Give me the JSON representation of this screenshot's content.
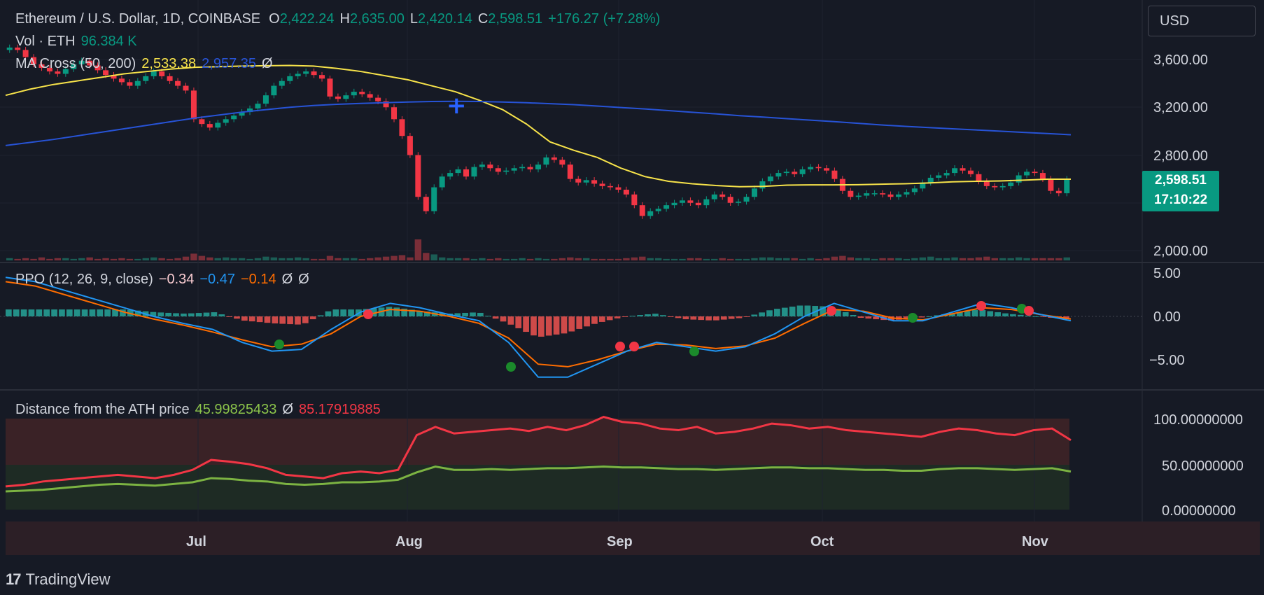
{
  "header": {
    "symbol": "Ethereum / U.S. Dollar, 1D, COINBASE",
    "o_label": "O",
    "o_value": "2,422.24",
    "h_label": "H",
    "h_value": "2,635.00",
    "l_label": "L",
    "l_value": "2,420.14",
    "c_label": "C",
    "c_value": "2,598.51",
    "change": "+176.27 (+7.28%)"
  },
  "vol_legend": {
    "label": "Vol · ETH",
    "value": "96.384 K"
  },
  "ma_legend": {
    "label": "MA Cross (50, 200)",
    "ma50": "2,533.38",
    "ma200": "2,957.35",
    "icon": "Ø"
  },
  "ppo_legend": {
    "label": "PPO (12, 26, 9, close)",
    "hist": "−0.34",
    "ppo": "−0.47",
    "signal": "−0.14",
    "icon1": "Ø",
    "icon2": "Ø"
  },
  "ath_legend": {
    "label": "Distance from the ATH price",
    "v1": "45.99825433",
    "icon": "Ø",
    "v2": "85.17919885"
  },
  "currency_button": "USD",
  "price_badge": {
    "price": "2,598.51",
    "countdown": "17:10:22"
  },
  "branding": {
    "text": "TradingView",
    "mark": "17"
  },
  "colors": {
    "up": "#089981",
    "down": "#f23645",
    "ma50": "#f7e34a",
    "ma200": "#2753d6",
    "ppo": "#2196f3",
    "signal": "#ff6d00",
    "ath_red": "#f23645",
    "ath_green": "#7cb342"
  },
  "chart_data": [
    {
      "type": "candlestick",
      "title": "Ethereum / U.S. Dollar, 1D, COINBASE",
      "x_ticks": [
        "Jul",
        "Aug",
        "Sep",
        "Oct",
        "Nov"
      ],
      "y_ticks": [
        "3,600.00",
        "3,200.00",
        "2,800.00",
        "2,000.00"
      ],
      "ylim": [
        1950,
        3800
      ],
      "closes": [
        3700,
        3680,
        3620,
        3560,
        3530,
        3500,
        3480,
        3520,
        3560,
        3590,
        3550,
        3510,
        3470,
        3440,
        3410,
        3380,
        3420,
        3460,
        3500,
        3460,
        3420,
        3380,
        3340,
        3100,
        3060,
        3030,
        3070,
        3100,
        3130,
        3160,
        3190,
        3230,
        3300,
        3380,
        3420,
        3460,
        3480,
        3500,
        3470,
        3440,
        3290,
        3270,
        3300,
        3330,
        3310,
        3280,
        3250,
        3200,
        3100,
        2960,
        2800,
        2450,
        2330,
        2530,
        2620,
        2650,
        2680,
        2620,
        2700,
        2720,
        2690,
        2660,
        2670,
        2690,
        2700,
        2680,
        2720,
        2780,
        2760,
        2720,
        2600,
        2570,
        2590,
        2560,
        2540,
        2530,
        2510,
        2470,
        2380,
        2290,
        2330,
        2350,
        2380,
        2400,
        2420,
        2400,
        2380,
        2430,
        2470,
        2450,
        2400,
        2410,
        2450,
        2520,
        2580,
        2620,
        2650,
        2660,
        2640,
        2680,
        2700,
        2690,
        2670,
        2600,
        2500,
        2450,
        2460,
        2480,
        2480,
        2470,
        2450,
        2470,
        2490,
        2520,
        2570,
        2610,
        2630,
        2650,
        2690,
        2670,
        2640,
        2580,
        2540,
        2530,
        2540,
        2570,
        2630,
        2660,
        2650,
        2600,
        2500,
        2480,
        2600
      ],
      "ma50": [
        3300,
        3350,
        3390,
        3420,
        3450,
        3480,
        3500,
        3520,
        3535,
        3540,
        3545,
        3548,
        3550,
        3545,
        3525,
        3500,
        3465,
        3430,
        3380,
        3330,
        3260,
        3180,
        3060,
        2910,
        2840,
        2780,
        2690,
        2620,
        2580,
        2560,
        2545,
        2535,
        2538,
        2548,
        2550,
        2550,
        2552,
        2556,
        2560,
        2566,
        2576,
        2580,
        2583,
        2590,
        2598,
        2598
      ],
      "ma200": [
        2880,
        2905,
        2930,
        2960,
        2990,
        3020,
        3050,
        3080,
        3110,
        3135,
        3160,
        3180,
        3200,
        3215,
        3225,
        3232,
        3238,
        3244,
        3248,
        3250,
        3248,
        3244,
        3238,
        3230,
        3222,
        3210,
        3198,
        3186,
        3172,
        3158,
        3145,
        3130,
        3118,
        3105,
        3092,
        3080,
        3066,
        3052,
        3040,
        3030,
        3020,
        3010,
        3000,
        2990,
        2980,
        2970
      ],
      "volume": [
        3,
        2,
        3,
        2,
        4,
        2,
        3,
        3,
        2,
        3,
        4,
        2,
        3,
        2,
        3,
        2,
        2,
        3,
        4,
        3,
        2,
        3,
        5,
        9,
        6,
        4,
        3,
        4,
        3,
        3,
        2,
        3,
        5,
        4,
        3,
        3,
        4,
        3,
        2,
        2,
        6,
        3,
        3,
        3,
        2,
        3,
        4,
        5,
        6,
        7,
        4,
        28,
        10,
        8,
        4,
        3,
        3,
        3,
        2,
        3,
        2,
        3,
        2,
        2,
        3,
        2,
        3,
        2,
        2,
        3,
        4,
        3,
        3,
        2,
        2,
        2,
        2,
        3,
        4,
        5,
        3,
        3,
        2,
        2,
        2,
        3,
        3,
        2,
        2,
        3,
        2,
        2,
        2,
        3,
        4,
        4,
        3,
        3,
        3,
        2,
        3,
        2,
        3,
        5,
        6,
        4,
        3,
        3,
        2,
        3,
        3,
        3,
        2,
        3,
        4,
        5,
        3,
        3,
        4,
        3,
        3,
        4,
        5,
        3,
        3,
        3,
        4,
        3,
        3,
        3,
        3,
        3,
        4
      ]
    },
    {
      "type": "line",
      "title": "PPO (12, 26, 9, close)",
      "y_ticks": [
        "5.00",
        "0.00",
        "−5.00"
      ],
      "ylim": [
        -8,
        5
      ],
      "series": [
        {
          "name": "PPO",
          "values": [
            4.5,
            4,
            3,
            2,
            1,
            0,
            -0.8,
            -1.5,
            -3,
            -4,
            -3.8,
            -1.5,
            0.5,
            1.5,
            1,
            0.2,
            -0.5,
            -3,
            -7,
            -7,
            -5.5,
            -4,
            -3,
            -3.5,
            -4,
            -3.5,
            -2,
            0,
            1.5,
            0.5,
            -0.5,
            -0.5,
            0.5,
            1.5,
            1,
            0.2,
            -0.5
          ]
        },
        {
          "name": "Signal",
          "values": [
            4,
            3.5,
            2.5,
            1.5,
            0.5,
            -0.3,
            -1,
            -1.8,
            -2.7,
            -3.5,
            -3.2,
            -2,
            0,
            0.8,
            0.6,
            0,
            -0.8,
            -2.5,
            -5.5,
            -5.8,
            -5,
            -4,
            -3.2,
            -3.3,
            -3.7,
            -3.4,
            -2.5,
            -0.8,
            0.8,
            0.6,
            -0.2,
            -0.4,
            0.3,
            1,
            0.8,
            0.2,
            -0.3
          ]
        }
      ]
    },
    {
      "type": "line",
      "title": "Distance from the ATH price",
      "y_ticks": [
        "100.00000000",
        "50.00000000",
        "0.00000000"
      ],
      "ylim": [
        0,
        120
      ],
      "series": [
        {
          "name": "Distance from the ATH price",
          "values": [
            28,
            30,
            34,
            36,
            38,
            40,
            42,
            40,
            38,
            42,
            48,
            60,
            58,
            55,
            50,
            42,
            40,
            38,
            44,
            46,
            44,
            48,
            90,
            100,
            92,
            94,
            96,
            98,
            95,
            100,
            96,
            102,
            112,
            106,
            104,
            98,
            96,
            100,
            92,
            94,
            98,
            104,
            102,
            98,
            100,
            96,
            94,
            92,
            90,
            88,
            94,
            98,
            96,
            92,
            90,
            96,
            98,
            84
          ]
        },
        {
          "name": "green",
          "values": [
            22,
            23,
            24,
            26,
            28,
            30,
            31,
            30,
            29,
            31,
            33,
            38,
            37,
            35,
            34,
            31,
            30,
            31,
            33,
            33,
            34,
            36,
            45,
            52,
            48,
            48,
            49,
            48,
            49,
            50,
            50,
            51,
            52,
            51,
            51,
            50,
            49,
            49,
            48,
            49,
            50,
            51,
            51,
            50,
            50,
            49,
            48,
            48,
            47,
            47,
            49,
            50,
            50,
            49,
            48,
            49,
            50,
            46
          ]
        }
      ]
    }
  ]
}
